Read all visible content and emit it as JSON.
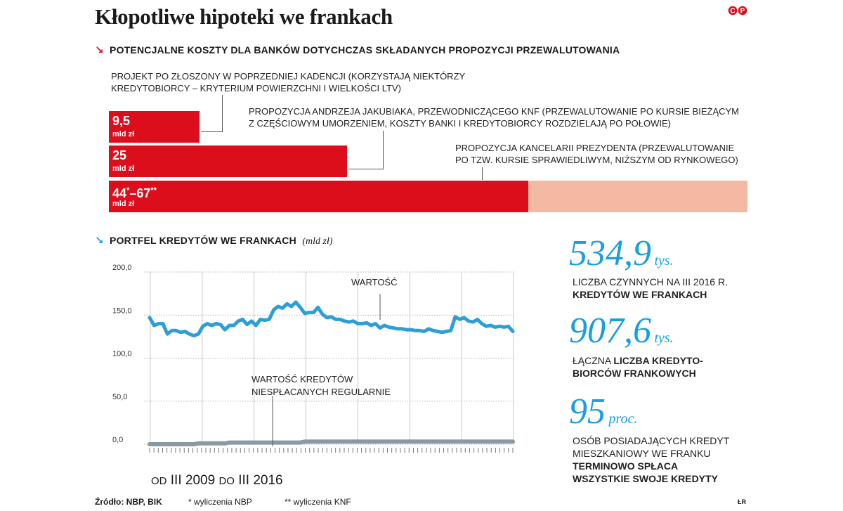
{
  "header": {
    "title": "Kłopotliwe hipoteki we frankach",
    "logo_text": "CP"
  },
  "section1": {
    "title": "Potencjalne koszty dla banków dotychczas składanych propozycji przewalutowania",
    "annotations": [
      [
        "Projekt PO złoszony w poprzedniej kadencji (korzystają niektórzy",
        "kredytobiorcy – kryterium powierzchni i wielkości LTV)"
      ],
      [
        "Propozycja Andrzeja Jakubiaka, przewodniczącego KNF (przewalutowanie po kursie bieżącym",
        "z częściowym umorzeniem, koszty banki i kredytobiorcy rozdzielają po połowie)"
      ],
      [
        "Propozycja Kancelarii Prezydenta (przewalutowanie",
        "po tzw. kursie sprawiedliwym, niższym od rynkowego)"
      ]
    ]
  },
  "chart_data": [
    {
      "type": "bar",
      "orientation": "horizontal",
      "unit": "mld zł",
      "categories": [
        "Projekt PO złoszony w poprzedniej kadencji",
        "Propozycja Andrzeja Jakubiaka, przewodniczącego KNF",
        "Propozycja Kancelarii Prezydenta"
      ],
      "values": [
        9.5,
        25,
        44
      ],
      "range_max": [
        null,
        null,
        67
      ],
      "labels": [
        "9,5",
        "25",
        "44*–67**"
      ],
      "colors": {
        "bar": "#dc0e1c",
        "range": "#f4b9a3"
      }
    },
    {
      "type": "line",
      "title": "Portfel kredytów we frankach",
      "unit_label": "(mld zł)",
      "ylim": [
        0,
        200
      ],
      "yticks": [
        0,
        50,
        100,
        150,
        200
      ],
      "ytick_labels": [
        "0,0",
        "50,0",
        "100,0",
        "150,0",
        "200,0"
      ],
      "x_caption": "od III 2009 do III 2016",
      "grid": "vertical",
      "series": [
        {
          "name": "WARTOŚĆ",
          "color": "#2e9fd6",
          "values": [
            147,
            138,
            140,
            140,
            128,
            132,
            132,
            130,
            131,
            128,
            126,
            128,
            137,
            140,
            138,
            140,
            139,
            133,
            138,
            138,
            143,
            145,
            139,
            143,
            138,
            145,
            144,
            145,
            156,
            160,
            158,
            163,
            160,
            165,
            159,
            152,
            153,
            153,
            159,
            151,
            147,
            148,
            145,
            145,
            143,
            142,
            143,
            140,
            140,
            141,
            138,
            140,
            135,
            138,
            136,
            135,
            134,
            134,
            133,
            133,
            132,
            132,
            131,
            134,
            132,
            131,
            130,
            131,
            132,
            148,
            145,
            147,
            143,
            142,
            145,
            140,
            137,
            138,
            136,
            137,
            136,
            137,
            131
          ]
        },
        {
          "name": "WARTOŚĆ KREDYTÓW NIESPŁACANYCH REGULARNIE",
          "color": "#8a9aa3",
          "values": [
            0,
            0,
            0,
            0,
            0,
            0,
            0,
            0,
            0,
            0,
            0,
            1,
            1,
            1,
            1,
            1,
            1,
            1,
            2,
            2,
            2,
            2,
            2,
            2,
            2,
            2,
            2,
            2,
            2,
            2,
            2,
            2,
            2,
            2,
            2,
            3,
            3,
            3,
            3,
            3,
            3,
            3,
            3,
            3,
            3,
            3,
            3,
            3,
            3,
            3,
            3,
            3,
            3,
            3,
            3,
            3,
            3,
            3,
            3,
            3,
            3,
            3,
            3,
            3,
            3,
            3,
            3,
            3,
            3,
            3,
            3,
            3,
            3,
            3,
            3,
            3,
            3,
            3,
            3,
            3,
            3,
            3,
            3
          ]
        }
      ]
    }
  ],
  "section2": {
    "title": "Portfel kredytów we frankach",
    "unit": "(mld zł)",
    "line_label_1": "WARTOŚĆ",
    "line_label_2a": "WARTOŚĆ KREDYTÓW",
    "line_label_2b": "NIESPŁACANYCH REGULARNIE",
    "period_from_pre": "OD",
    "period_from": "III 2009",
    "period_to_pre": "DO",
    "period_to": "III 2016"
  },
  "stats": [
    {
      "number": "534,9",
      "unit": "tys.",
      "text_plain": "LICZBA CZYNNYCH NA III 2016 R.",
      "text_bold": "KREDYTÓW WE FRANKACH"
    },
    {
      "number": "907,6",
      "unit": "tys.",
      "text_plain_prefix": "ŁĄCZNA ",
      "text_bold_inline": "LICZBA KREDYTO-",
      "text_bold": "BIORCÓW FRANKOWYCH"
    },
    {
      "number": "95",
      "unit": "proc.",
      "line1": "OSÓB POSIADAJĄCYCH KREDYT",
      "line2": "MIESZKANIOWY WE FRANKU",
      "line3_bold": "TERMINOWO SPŁACA",
      "line4_bold": "WSZYSTKIE SWOJE KREDYTY"
    }
  ],
  "footer": {
    "source_label": "Źródło: NBP, BIK",
    "note1": "* wyliczenia NBP",
    "note2": "** wyliczenia KNF",
    "author": "ŁR"
  }
}
